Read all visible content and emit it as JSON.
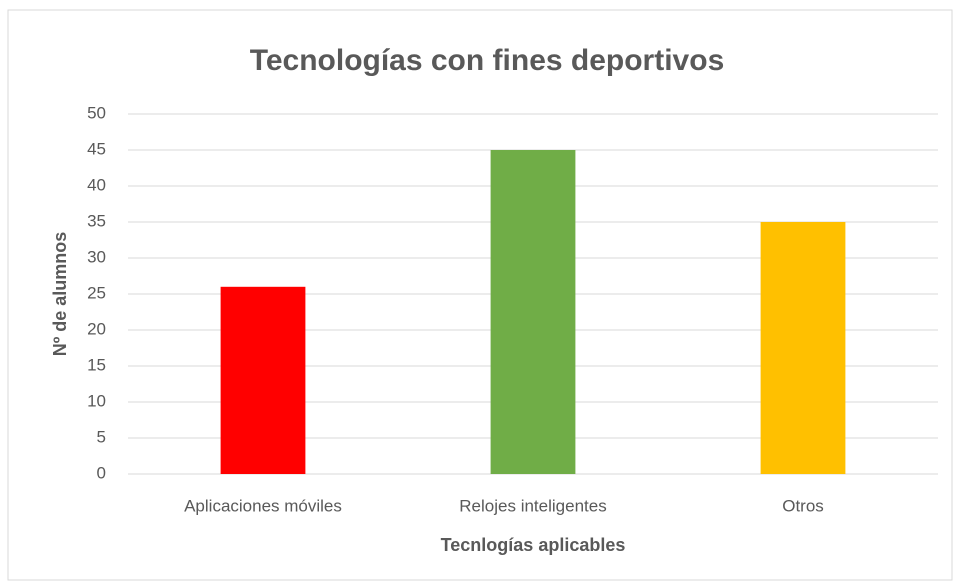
{
  "chart_data": {
    "type": "bar",
    "title": "Tecnologías con fines deportivos",
    "xlabel": "Tecnlogías aplicables",
    "ylabel": "Nº de alumnos",
    "categories": [
      "Aplicaciones móviles",
      "Relojes inteligentes",
      "Otros"
    ],
    "values": [
      26,
      45,
      35
    ],
    "colors": [
      "#ff0000",
      "#70ad47",
      "#ffc000"
    ],
    "ylim": [
      0,
      50
    ],
    "yticks": [
      0,
      5,
      10,
      15,
      20,
      25,
      30,
      35,
      40,
      45,
      50
    ],
    "grid": true
  }
}
